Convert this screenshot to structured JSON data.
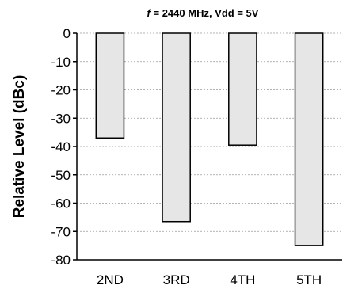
{
  "chart_data": {
    "type": "bar",
    "title_italic": "f",
    "title_rest": " = 2440 MHz, Vdd = 5V",
    "ylabel": "Relative Level (dBc)",
    "xlabel": "",
    "categories": [
      "2ND",
      "3RD",
      "4TH",
      "5TH"
    ],
    "values": [
      -37,
      -66.5,
      -39.5,
      -75
    ],
    "ylim": [
      -80,
      0
    ],
    "yticks": [
      0,
      -10,
      -20,
      -30,
      -40,
      -50,
      -60,
      -70,
      -80
    ],
    "grid": true,
    "legend": "none",
    "bar_color": "#e6e6e6"
  }
}
